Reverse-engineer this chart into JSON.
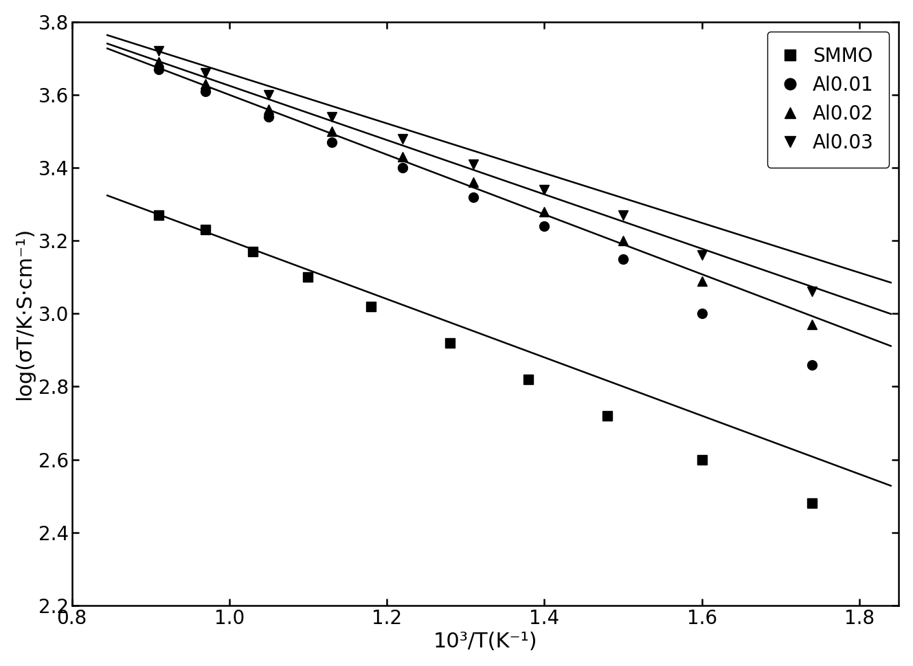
{
  "title": "",
  "xlabel": "10³/T(K⁻¹)",
  "ylabel": "log(σT/K·S·cm⁻¹)",
  "xlim": [
    0.8,
    1.85
  ],
  "ylim": [
    2.2,
    3.8
  ],
  "xticks": [
    0.8,
    1.0,
    1.2,
    1.4,
    1.6,
    1.8
  ],
  "yticks": [
    2.2,
    2.4,
    2.6,
    2.8,
    3.0,
    3.2,
    3.4,
    3.6,
    3.8
  ],
  "series": [
    {
      "label": "SMMO",
      "marker": "s",
      "x_data": [
        0.91,
        0.97,
        1.03,
        1.1,
        1.18,
        1.28,
        1.38,
        1.48,
        1.6,
        1.74
      ],
      "y_data": [
        3.27,
        3.23,
        3.17,
        3.1,
        3.02,
        2.92,
        2.82,
        2.72,
        2.6,
        2.48
      ],
      "fit_slope": -0.8,
      "fit_intercept": 4.0
    },
    {
      "label": "Al0.01",
      "marker": "o",
      "x_data": [
        0.91,
        0.97,
        1.05,
        1.13,
        1.22,
        1.31,
        1.4,
        1.5,
        1.6,
        1.74
      ],
      "y_data": [
        3.67,
        3.61,
        3.54,
        3.47,
        3.4,
        3.32,
        3.24,
        3.15,
        3.0,
        2.86
      ],
      "fit_slope": -0.82,
      "fit_intercept": 4.42
    },
    {
      "label": "Al0.02",
      "marker": "^",
      "x_data": [
        0.91,
        0.97,
        1.05,
        1.13,
        1.22,
        1.31,
        1.4,
        1.5,
        1.6,
        1.74
      ],
      "y_data": [
        3.69,
        3.63,
        3.56,
        3.5,
        3.43,
        3.36,
        3.28,
        3.2,
        3.09,
        2.97
      ],
      "fit_slope": -0.745,
      "fit_intercept": 4.37
    },
    {
      "label": "Al0.03",
      "marker": "v",
      "x_data": [
        0.91,
        0.97,
        1.05,
        1.13,
        1.22,
        1.31,
        1.4,
        1.5,
        1.6,
        1.74
      ],
      "y_data": [
        3.72,
        3.66,
        3.6,
        3.54,
        3.48,
        3.41,
        3.34,
        3.27,
        3.16,
        3.06
      ],
      "fit_slope": -0.682,
      "fit_intercept": 4.34
    }
  ],
  "fit_x_start": 0.845,
  "fit_x_end": 1.84,
  "marker_size": 10,
  "line_width": 1.8,
  "font_size": 22,
  "tick_font_size": 20,
  "legend_font_size": 20,
  "color": "black",
  "bg_color": "#ffffff"
}
